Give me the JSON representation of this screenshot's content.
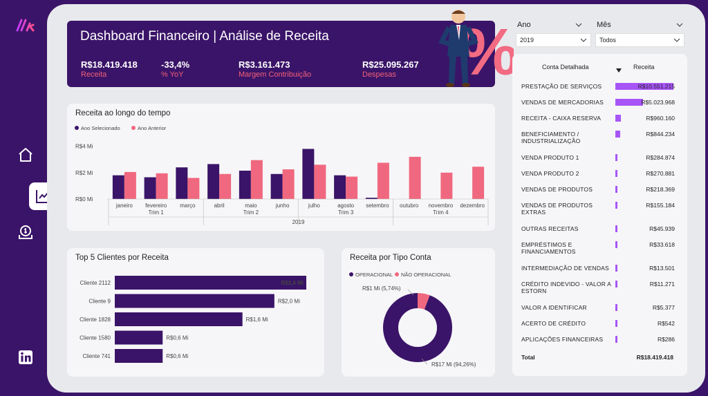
{
  "header": {
    "title": "Dashboard Financeiro | Análise de Receita",
    "kpis": [
      {
        "value": "R$18.419.418",
        "label": "Receita"
      },
      {
        "value": "-33,4%",
        "label": "% YoY"
      },
      {
        "value": "R$3.161.473",
        "label": "Margem Contribuição"
      },
      {
        "value": "R$25.095.267",
        "label": "Despesas"
      }
    ]
  },
  "filters": {
    "ano": {
      "label": "Ano",
      "value": "2019"
    },
    "mes": {
      "label": "Mês",
      "value": "Todos"
    }
  },
  "colors": {
    "purple": "#3a1468",
    "coral": "#f0687f",
    "violet": "#a855f7"
  },
  "chart_data": [
    {
      "type": "bar",
      "title": "Receita ao longo do tempo",
      "legend": [
        "Ano Selecionado",
        "Ano Anterior"
      ],
      "y_ticks": [
        "R$4 Mi",
        "R$2 Mi",
        "R$0 Mi"
      ],
      "ylim": [
        0,
        4.4
      ],
      "categories": [
        "janeiro",
        "fevereiro",
        "março",
        "abril",
        "maio",
        "junho",
        "julho",
        "agosto",
        "setembro",
        "outubro",
        "novembro",
        "dezembro"
      ],
      "quarters": [
        "Trim 1",
        "Trim 2",
        "Trim 3",
        "Trim 4"
      ],
      "year": "2019",
      "series": [
        {
          "name": "Ano Selecionado",
          "values": [
            1.8,
            1.65,
            2.4,
            2.65,
            2.15,
            1.9,
            3.8,
            1.8,
            0.1,
            0,
            0,
            0
          ]
        },
        {
          "name": "Ano Anterior",
          "values": [
            2.05,
            1.95,
            1.6,
            1.9,
            2.95,
            2.25,
            2.6,
            1.7,
            2.75,
            3.2,
            2.0,
            2.45
          ]
        }
      ]
    },
    {
      "type": "bar",
      "orientation": "horizontal",
      "title": "Top 5 Clientes por Receita",
      "categories": [
        "Cliente 2112",
        "Cliente 9",
        "Cliente 1828",
        "Cliente 1580",
        "Cliente 741"
      ],
      "values": [
        2.4,
        2.0,
        1.6,
        0.6,
        0.6
      ],
      "labels": [
        "R$2,4 Mi",
        "R$2,0 Mi",
        "R$1,6 Mi",
        "R$0,6 Mi",
        "R$0,6 Mi"
      ]
    },
    {
      "type": "pie",
      "title": "Receita por Tipo Conta",
      "legend": [
        "OPERACIONAL",
        "NÃO OPERACIONAL"
      ],
      "values": [
        94.26,
        5.74
      ],
      "labels": [
        "R$17 Mi (94,26%)",
        "R$1 Mi (5,74%)"
      ]
    }
  ],
  "table": {
    "headers": [
      "Conta Detalhada",
      "Receita"
    ],
    "rows": [
      {
        "name": "PRESTAÇÃO DE SERVIÇOS",
        "value": "R$10.551.215",
        "amount": 10551215
      },
      {
        "name": "VENDAS DE MERCADORIAS",
        "value": "R$5.023.968",
        "amount": 5023968
      },
      {
        "name": "RECEITA - CAIXA RESERVA",
        "value": "R$960.160",
        "amount": 960160
      },
      {
        "name": "BENEFICIAMENTO / INDUSTRIALIZAÇÃO",
        "value": "R$844.234",
        "amount": 844234
      },
      {
        "name": "VENDA PRODUTO 1",
        "value": "R$284.874",
        "amount": 284874
      },
      {
        "name": "VENDA PRODUTO 2",
        "value": "R$270.881",
        "amount": 270881
      },
      {
        "name": "VENDAS DE PRODUTOS",
        "value": "R$218.369",
        "amount": 218369
      },
      {
        "name": "VENDAS DE PRODUTOS EXTRAS",
        "value": "R$155.184",
        "amount": 155184
      },
      {
        "name": "OUTRAS RECEITAS",
        "value": "R$45.939",
        "amount": 45939
      },
      {
        "name": "EMPRÉSTIMOS E FINANCIAMENTOS",
        "value": "R$33.618",
        "amount": 33618
      },
      {
        "name": "INTERMEDIAÇÃO DE VENDAS",
        "value": "R$13.501",
        "amount": 13501
      },
      {
        "name": "CRÉDITO INDEVIDO - VALOR A ESTORN",
        "value": "R$11.271",
        "amount": 11271
      },
      {
        "name": "VALOR A IDENTIFICAR",
        "value": "R$5.377",
        "amount": 5377
      },
      {
        "name": "ACERTO DE CRÉDITO",
        "value": "R$542",
        "amount": 542
      },
      {
        "name": "APLICAÇÕES FINANCEIRAS",
        "value": "R$286",
        "amount": 286
      }
    ],
    "total_label": "Total",
    "total_value": "R$18.419.418"
  },
  "icons": [
    "logo-icon",
    "home-icon",
    "chart-icon",
    "money-icon",
    "linkedin-icon",
    "percent-icon",
    "chevron-down-icon",
    "sort-desc-icon"
  ]
}
